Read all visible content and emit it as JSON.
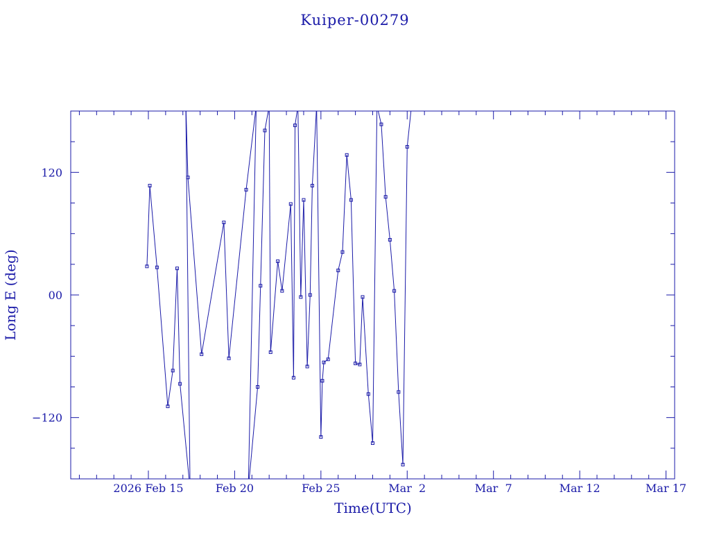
{
  "chart_data": {
    "type": "line",
    "title": "Kuiper-00279",
    "xlabel": "Time(UTC)",
    "ylabel": "Long E (deg)",
    "color": "#1a1aa8",
    "x_axis": {
      "min_date": "2026-02-10T12:00:00",
      "max_date": "2026-03-17T12:00:00",
      "ticks": [
        {
          "date": "2026-02-15",
          "label": "2026 Feb 15"
        },
        {
          "date": "2026-02-20",
          "label": "Feb 20"
        },
        {
          "date": "2026-02-25",
          "label": "Feb 25"
        },
        {
          "date": "2026-03-02",
          "label": "Mar  2"
        },
        {
          "date": "2026-03-07",
          "label": "Mar  7"
        },
        {
          "date": "2026-03-12",
          "label": "Mar 12"
        },
        {
          "date": "2026-03-17",
          "label": "Mar 17"
        }
      ]
    },
    "y_axis": {
      "min": -180,
      "max": 180,
      "ticks": [
        {
          "value": 120,
          "label": "120"
        },
        {
          "value": 0,
          "label": "00"
        },
        {
          "value": -120,
          "label": "−120"
        }
      ]
    },
    "points": [
      [
        "2026-02-14T22:00:00",
        28
      ],
      [
        "2026-02-15T02:00:00",
        107
      ],
      [
        "2026-02-15T12:00:00",
        27
      ],
      [
        "2026-02-16T03:00:00",
        -109
      ],
      [
        "2026-02-16T10:00:00",
        -74
      ],
      [
        "2026-02-16T16:00:00",
        26
      ],
      [
        "2026-02-16T20:00:00",
        -87
      ],
      [
        "2026-02-17T10:00:00",
        -190
      ],
      [
        "2026-02-17T04:00:00",
        190
      ],
      [
        "2026-02-17T07:00:00",
        115
      ],
      [
        "2026-02-18T02:00:00",
        -58
      ],
      [
        "2026-02-19T09:00:00",
        71
      ],
      [
        "2026-02-19T16:00:00",
        -62
      ],
      [
        "2026-02-20T16:00:00",
        103
      ],
      [
        "2026-02-21T06:00:00",
        185
      ],
      [
        "2026-02-20T19:00:00",
        -190
      ],
      [
        "2026-02-21T08:00:00",
        -90
      ],
      [
        "2026-02-21T12:00:00",
        9
      ],
      [
        "2026-02-21T18:00:00",
        161
      ],
      [
        "2026-02-22T00:00:00",
        185
      ],
      [
        "2026-02-22T02:00:00",
        -56
      ],
      [
        "2026-02-22T12:00:00",
        33
      ],
      [
        "2026-02-22T18:00:00",
        4
      ],
      [
        "2026-02-23T06:00:00",
        89
      ],
      [
        "2026-02-23T10:00:00",
        -81
      ],
      [
        "2026-02-23T12:00:00",
        166
      ],
      [
        "2026-02-23T16:00:00",
        185
      ],
      [
        "2026-02-23T20:00:00",
        -2
      ],
      [
        "2026-02-24T00:00:00",
        93
      ],
      [
        "2026-02-24T05:00:00",
        -70
      ],
      [
        "2026-02-24T09:00:00",
        0
      ],
      [
        "2026-02-24T12:00:00",
        107
      ],
      [
        "2026-02-24T18:00:00",
        185
      ],
      [
        "2026-02-25T00:00:00",
        -139
      ],
      [
        "2026-02-25T02:00:00",
        -84
      ],
      [
        "2026-02-25T04:00:00",
        -66
      ],
      [
        "2026-02-25T10:00:00",
        -63
      ],
      [
        "2026-02-26T00:00:00",
        24
      ],
      [
        "2026-02-26T06:00:00",
        42
      ],
      [
        "2026-02-26T12:00:00",
        137
      ],
      [
        "2026-02-26T18:00:00",
        93
      ],
      [
        "2026-02-27T00:00:00",
        -67
      ],
      [
        "2026-02-27T06:00:00",
        -68
      ],
      [
        "2026-02-27T10:00:00",
        -2
      ],
      [
        "2026-02-27T18:00:00",
        -97
      ],
      [
        "2026-02-28T00:00:00",
        -145
      ],
      [
        "2026-02-28T06:00:00",
        185
      ],
      [
        "2026-02-28T12:00:00",
        167
      ],
      [
        "2026-02-28T18:00:00",
        96
      ],
      [
        "2026-03-01T00:00:00",
        54
      ],
      [
        "2026-03-01T06:00:00",
        4
      ],
      [
        "2026-03-01T12:00:00",
        -95
      ],
      [
        "2026-03-01T18:00:00",
        -166
      ],
      [
        "2026-03-02T00:00:00",
        145
      ],
      [
        "2026-03-02T06:00:00",
        185
      ]
    ]
  }
}
